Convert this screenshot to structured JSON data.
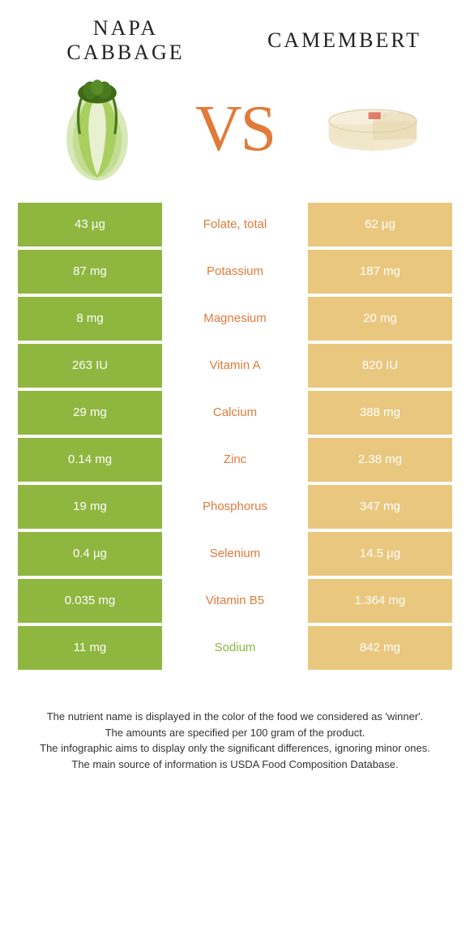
{
  "colors": {
    "left_bar": "#8fb63f",
    "right_bar": "#e9c77f",
    "nutrient_left_win": "#8fb63f",
    "nutrient_right_win": "#e07b3a",
    "vs": "#e07b3a",
    "background": "#ffffff"
  },
  "header": {
    "left_title": "NAPA CABBAGE",
    "right_title": "CAMEMBERT"
  },
  "vs_label": "VS",
  "rows": [
    {
      "left": "43 µg",
      "nutrient": "Folate, total",
      "right": "62 µg",
      "winner": "right"
    },
    {
      "left": "87 mg",
      "nutrient": "Potassium",
      "right": "187 mg",
      "winner": "right"
    },
    {
      "left": "8 mg",
      "nutrient": "Magnesium",
      "right": "20 mg",
      "winner": "right"
    },
    {
      "left": "263 IU",
      "nutrient": "Vitamin A",
      "right": "820 IU",
      "winner": "right"
    },
    {
      "left": "29 mg",
      "nutrient": "Calcium",
      "right": "388 mg",
      "winner": "right"
    },
    {
      "left": "0.14 mg",
      "nutrient": "Zinc",
      "right": "2.38 mg",
      "winner": "right"
    },
    {
      "left": "19 mg",
      "nutrient": "Phosphorus",
      "right": "347 mg",
      "winner": "right"
    },
    {
      "left": "0.4 µg",
      "nutrient": "Selenium",
      "right": "14.5 µg",
      "winner": "right"
    },
    {
      "left": "0.035 mg",
      "nutrient": "Vitamin B5",
      "right": "1.364 mg",
      "winner": "right"
    },
    {
      "left": "11 mg",
      "nutrient": "Sodium",
      "right": "842 mg",
      "winner": "left"
    }
  ],
  "footer": {
    "line1": "The nutrient name is displayed in the color of the food we considered as 'winner'.",
    "line2": "The amounts are specified per 100 gram of the product.",
    "line3": "The infographic aims to display only the significant differences, ignoring minor ones.",
    "line4": "The main source of information is USDA Food Composition Database."
  }
}
